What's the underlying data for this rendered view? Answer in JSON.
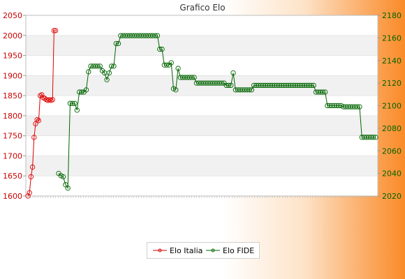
{
  "chart_data": {
    "type": "line",
    "title": "Grafico Elo",
    "y_left": {
      "lim": [
        1600,
        2050
      ],
      "ticks": [
        1600,
        1650,
        1700,
        1750,
        1800,
        1850,
        1900,
        1950,
        2000,
        2050
      ]
    },
    "y_right": {
      "lim": [
        2020,
        2180
      ],
      "ticks": [
        2020,
        2040,
        2060,
        2080,
        2100,
        2120,
        2140,
        2160,
        2180
      ]
    },
    "x_tick_labels_note_illegible": true,
    "grid": "horizontal bands",
    "legend": "bottom-center",
    "colors": {
      "italia": "#dd0000",
      "fide": "#006400",
      "axis_left": "#cc0000",
      "axis_right": "#006400"
    },
    "series": [
      {
        "name": "Elo Italia",
        "axis": "left",
        "values": [
          1600,
          1608,
          1648,
          1672,
          1746,
          1780,
          1790,
          1788,
          1850,
          1852,
          1845,
          1843,
          1840,
          1838,
          1840,
          1838,
          1840,
          2012,
          2012
        ]
      },
      {
        "name": "Elo FIDE",
        "axis": "right",
        "values": [
          2040,
          2038,
          2037,
          2030,
          2027,
          2102,
          2102,
          2102,
          2096,
          2112,
          2112,
          2112,
          2114,
          2130,
          2135,
          2135,
          2135,
          2135,
          2135,
          2131,
          2129,
          2123,
          2129,
          2135,
          2135,
          2155,
          2155,
          2162,
          2162,
          2162,
          2162,
          2162,
          2162,
          2162,
          2162,
          2162,
          2162,
          2162,
          2162,
          2162,
          2162,
          2162,
          2162,
          2162,
          2150,
          2150,
          2136,
          2136,
          2136,
          2138,
          2115,
          2114,
          2133,
          2125,
          2125,
          2125,
          2125,
          2125,
          2125,
          2125,
          2120,
          2120,
          2120,
          2120,
          2120,
          2120,
          2120,
          2120,
          2120,
          2120,
          2120,
          2120,
          2120,
          2118,
          2118,
          2118,
          2129,
          2114,
          2114,
          2114,
          2114,
          2114,
          2114,
          2114,
          2114,
          2118,
          2118,
          2118,
          2118,
          2118,
          2118,
          2118,
          2118,
          2118,
          2118,
          2118,
          2118,
          2118,
          2118,
          2118,
          2118,
          2118,
          2118,
          2118,
          2118,
          2118,
          2118,
          2118,
          2118,
          2118,
          2118,
          2118,
          2112,
          2112,
          2112,
          2112,
          2112,
          2100,
          2100,
          2100,
          2100,
          2100,
          2100,
          2100,
          2099,
          2099,
          2099,
          2099,
          2099,
          2099,
          2099,
          2099,
          2072,
          2072,
          2072,
          2072,
          2072,
          2072,
          2072
        ]
      }
    ]
  }
}
